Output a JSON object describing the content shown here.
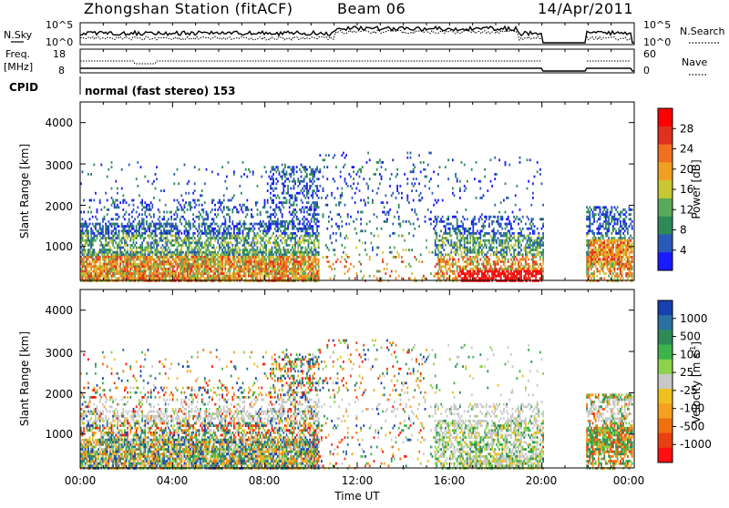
{
  "header": {
    "station": "Zhongshan Station (fitACF)",
    "beam": "Beam 06",
    "date": "14/Apr/2011"
  },
  "panels": {
    "nsky_label": "N.Sky",
    "nsky_ticks": [
      "10^5",
      "10^0"
    ],
    "nsearch_label": "N.Search",
    "nsearch_ticks": [
      "10^5",
      "10^0"
    ],
    "freq_label": "Freq.",
    "freq_unit": "[MHz]",
    "freq_ticks": [
      "18",
      "8"
    ],
    "nave_label": "Nave",
    "nave_ticks": [
      "60",
      "0"
    ],
    "cpid_label": "CPID",
    "cpid_text": "normal (fast stereo) 153"
  },
  "chart_data": [
    {
      "type": "heatmap",
      "name": "power",
      "ylabel": "Slant Range [km]",
      "ylim": [
        180,
        4500
      ],
      "yticks": [
        "1000",
        "2000",
        "3000",
        "4000"
      ],
      "colorbar_label": "Power [dB]",
      "colorbar_ticks": [
        "4",
        "8",
        "12",
        "16",
        "20",
        "24",
        "28"
      ],
      "colors": [
        "#1a1aff",
        "#2a5ab8",
        "#2e8b57",
        "#5aa85a",
        "#c8c832",
        "#f0a020",
        "#f07020",
        "#e03020",
        "#ff0000"
      ]
    },
    {
      "type": "heatmap",
      "name": "velocity",
      "ylabel": "Slant Range [km]",
      "ylim": [
        180,
        4500
      ],
      "yticks": [
        "1000",
        "2000",
        "3000",
        "4000"
      ],
      "xlabel": "Time UT",
      "xticks": [
        "00:00",
        "04:00",
        "08:00",
        "12:00",
        "16:00",
        "20:00",
        "00:00"
      ],
      "colorbar_label": "Velocity [m s",
      "colorbar_label_sup": "-1",
      "colorbar_ticks": [
        "1000",
        "500",
        "100",
        "25",
        "-25",
        "-100",
        "-500",
        "-1000"
      ],
      "colors": [
        "#1840b0",
        "#2a70a0",
        "#2e8b57",
        "#3cb44b",
        "#8cd24a",
        "#c8c8c8",
        "#f0c020",
        "#f5a020",
        "#f07010",
        "#e84010",
        "#ff1010"
      ]
    }
  ]
}
